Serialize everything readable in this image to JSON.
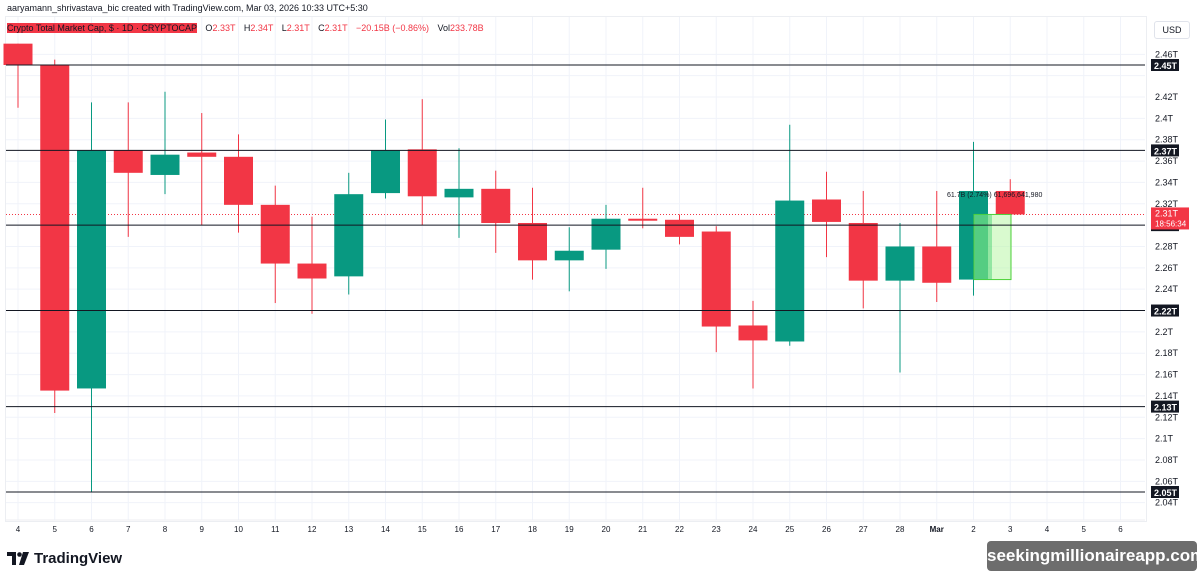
{
  "header": {
    "credit": "aaryamann_shrivastava_bic created with TradingView.com, Mar 03, 2026 10:33 UTC+5:30"
  },
  "legend": {
    "symbol": "Crypto Total Market Cap, $ · 1D · CRYPTOCAP",
    "open_label": "O",
    "open": "2.33T",
    "high_label": "H",
    "high": "2.34T",
    "low_label": "L",
    "low": "2.31T",
    "close_label": "C",
    "close": "2.31T",
    "change": "−20.15B (−0.86%)",
    "vol_label": "Vol",
    "vol": "233.78B"
  },
  "price_axis": {
    "currency": "USD",
    "ticks": [
      "2.46T",
      "2.42T",
      "2.4T",
      "2.38T",
      "2.36T",
      "2.34T",
      "2.32T",
      "2.28T",
      "2.26T",
      "2.24T",
      "2.22T",
      "2.2T",
      "2.18T",
      "2.16T",
      "2.14T",
      "2.12T",
      "2.1T",
      "2.08T",
      "2.06T",
      "2.04T"
    ],
    "current_price_label": "2.31T",
    "countdown": "18:56:34"
  },
  "time_axis": {
    "labels": [
      "4",
      "5",
      "6",
      "7",
      "8",
      "9",
      "10",
      "11",
      "12",
      "13",
      "14",
      "15",
      "16",
      "17",
      "18",
      "19",
      "20",
      "21",
      "22",
      "23",
      "24",
      "25",
      "26",
      "27",
      "28",
      "Mar",
      "2",
      "3",
      "4",
      "5",
      "6"
    ]
  },
  "measure_tool": {
    "label": "61.7B (2.74%) 61,696,641,980"
  },
  "footer": {
    "logo_text": "TradingView",
    "watermark": "seekingmillionaireapp.com"
  },
  "colors": {
    "up": "#089981",
    "down": "#f23645",
    "level_line": "#131722",
    "measure_fill": "#b9f5a8",
    "measure_border": "#4cd137"
  },
  "chart_data": {
    "type": "candlestick",
    "title": "Crypto Total Market Cap, $ · 1D · CRYPTOCAP",
    "xlabel": "",
    "ylabel": "USD",
    "ylim": [
      2.035,
      2.47
    ],
    "categories": [
      "4",
      "5",
      "6",
      "7",
      "8",
      "9",
      "10",
      "11",
      "12",
      "13",
      "14",
      "15",
      "16",
      "17",
      "18",
      "19",
      "20",
      "21",
      "22",
      "23",
      "24",
      "25",
      "26",
      "27",
      "28",
      "Mar 1",
      "2",
      "3"
    ],
    "series": [
      {
        "name": "TOTAL",
        "ohlc": [
          [
            2.47,
            2.47,
            2.41,
            2.45
          ],
          [
            2.45,
            2.455,
            2.124,
            2.145
          ],
          [
            2.147,
            2.415,
            2.05,
            2.37
          ],
          [
            2.37,
            2.415,
            2.289,
            2.349
          ],
          [
            2.347,
            2.425,
            2.329,
            2.366
          ],
          [
            2.368,
            2.405,
            2.3,
            2.364
          ],
          [
            2.364,
            2.385,
            2.293,
            2.319
          ],
          [
            2.319,
            2.337,
            2.227,
            2.264
          ],
          [
            2.264,
            2.308,
            2.217,
            2.25
          ],
          [
            2.252,
            2.349,
            2.235,
            2.329
          ],
          [
            2.33,
            2.399,
            2.325,
            2.37
          ],
          [
            2.371,
            2.418,
            2.3,
            2.327
          ],
          [
            2.326,
            2.372,
            2.288,
            2.334
          ],
          [
            2.334,
            2.351,
            2.274,
            2.302
          ],
          [
            2.302,
            2.335,
            2.249,
            2.267
          ],
          [
            2.267,
            2.298,
            2.238,
            2.276
          ],
          [
            2.277,
            2.319,
            2.259,
            2.306
          ],
          [
            2.306,
            2.335,
            2.297,
            2.305
          ],
          [
            2.305,
            2.31,
            2.282,
            2.289
          ],
          [
            2.294,
            2.299,
            2.181,
            2.205
          ],
          [
            2.206,
            2.229,
            2.147,
            2.192
          ],
          [
            2.191,
            2.394,
            2.187,
            2.323
          ],
          [
            2.324,
            2.35,
            2.27,
            2.303
          ],
          [
            2.302,
            2.332,
            2.222,
            2.248
          ],
          [
            2.248,
            2.302,
            2.162,
            2.28
          ],
          [
            2.28,
            2.332,
            2.228,
            2.246
          ],
          [
            2.249,
            2.378,
            2.234,
            2.332
          ],
          [
            2.332,
            2.343,
            2.31,
            2.31
          ]
        ]
      }
    ],
    "horizontal_levels": [
      2.45,
      2.37,
      2.3,
      2.22,
      2.13,
      2.05
    ],
    "current_price": 2.31,
    "legend_position": "top-left",
    "grid": true
  }
}
